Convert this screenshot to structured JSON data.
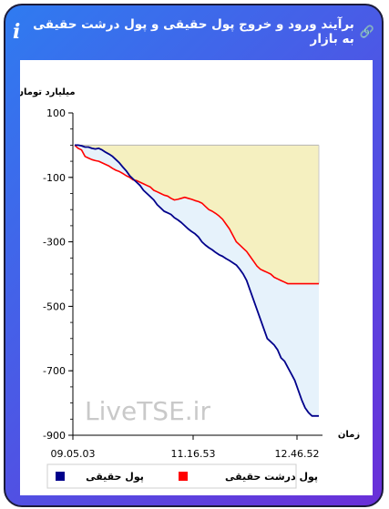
{
  "header": {
    "title": "برآیند ورود و خروج پول حقیقی و پول درشت حقیقی به بازار",
    "info_icon": "i",
    "link_icon": "link-icon"
  },
  "chart_data": {
    "type": "line",
    "ylabel": "میلیارد تومان",
    "xlabel": "زمان",
    "ylim": [
      -900,
      100
    ],
    "yticks": [
      100,
      -100,
      -300,
      -500,
      -700,
      -900
    ],
    "ytick_labels": [
      "100",
      "-100",
      "-300",
      "-500",
      "-700",
      "-900"
    ],
    "xtick_labels": [
      "09.05.03",
      "11.16.53",
      "12.46.52"
    ],
    "watermark": "LiveTSE.ir",
    "legend_position": "bottom",
    "series": [
      {
        "name": "پول حقیقی",
        "color": "#00008b",
        "fill": "#e6f2fb",
        "values": [
          0,
          0,
          -2,
          -6,
          -6,
          -10,
          -12,
          -10,
          -15,
          -22,
          -28,
          -35,
          -45,
          -55,
          -68,
          -80,
          -95,
          -105,
          -115,
          -125,
          -140,
          -150,
          -160,
          -170,
          -185,
          -195,
          -205,
          -210,
          -215,
          -225,
          -232,
          -240,
          -250,
          -260,
          -268,
          -275,
          -285,
          -300,
          -310,
          -318,
          -325,
          -333,
          -340,
          -345,
          -352,
          -358,
          -365,
          -372,
          -385,
          -400,
          -420,
          -450,
          -480,
          -510,
          -540,
          -570,
          -600,
          -610,
          -620,
          -635,
          -660,
          -670,
          -690,
          -710,
          -730,
          -760,
          -790,
          -815,
          -830,
          -840,
          -840,
          -840
        ]
      },
      {
        "name": "پول درشت حقیقی",
        "color": "#ff0000",
        "fill": "#f5f0c0",
        "values": [
          0,
          -10,
          -15,
          -35,
          -40,
          -45,
          -48,
          -50,
          -55,
          -60,
          -65,
          -72,
          -78,
          -82,
          -88,
          -95,
          -100,
          -108,
          -110,
          -115,
          -120,
          -125,
          -130,
          -140,
          -145,
          -150,
          -155,
          -158,
          -165,
          -170,
          -168,
          -165,
          -162,
          -165,
          -168,
          -172,
          -175,
          -180,
          -190,
          -200,
          -205,
          -212,
          -220,
          -230,
          -245,
          -260,
          -280,
          -300,
          -310,
          -320,
          -330,
          -345,
          -360,
          -375,
          -385,
          -390,
          -395,
          -400,
          -410,
          -415,
          -420,
          -425,
          -430,
          -430,
          -430,
          -430,
          -430,
          -430,
          -430,
          -430,
          -430,
          -430
        ]
      }
    ]
  }
}
